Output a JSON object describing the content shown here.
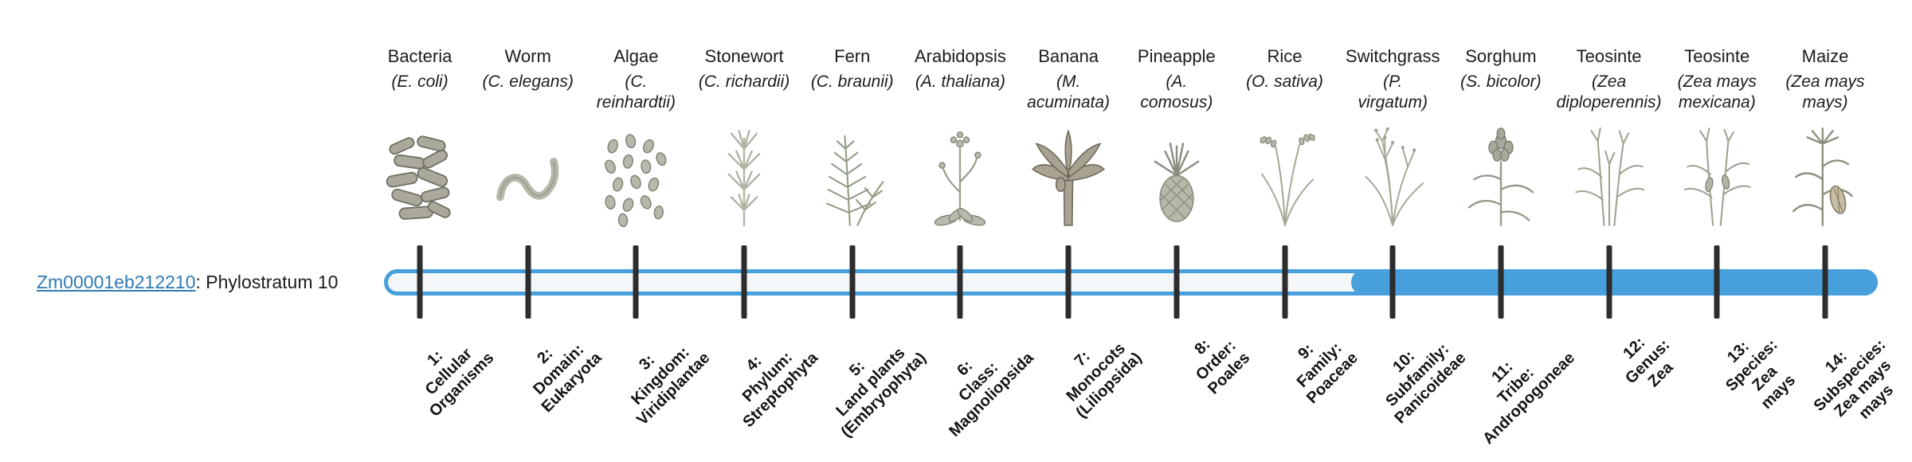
{
  "gene": {
    "id": "Zm00001eb212210",
    "label_suffix": ": Phylostratum 10",
    "phylostratum": 10
  },
  "colors": {
    "bar_fill": "#47a0dc",
    "bar_track": "#f3f7fa",
    "tick": "#2d2d2d",
    "link": "#2f7bb6"
  },
  "organisms": [
    {
      "name": "Bacteria",
      "sci": "(E. coli)",
      "icon": "bacteria-icon",
      "stratum": "1:\nCellular\nOrganisms"
    },
    {
      "name": "Worm",
      "sci": "(C. elegans)",
      "icon": "worm-icon",
      "stratum": "2:\nDomain:\nEukaryota"
    },
    {
      "name": "Algae",
      "sci": "(C.\nreinhardtii)",
      "icon": "algae-icon",
      "stratum": "3:\nKingdom:\nViridiplantae"
    },
    {
      "name": "Stonewort",
      "sci": "(C. richardii)",
      "icon": "stonewort-icon",
      "stratum": "4:\nPhylum:\nStreptophyta"
    },
    {
      "name": "Fern",
      "sci": "(C. braunii)",
      "icon": "fern-icon",
      "stratum": "5:\nLand plants\n(Embryophyta)"
    },
    {
      "name": "Arabidopsis",
      "sci": "(A. thaliana)",
      "icon": "arabidopsis-icon",
      "stratum": "6:\nClass:\nMagnoliopsida"
    },
    {
      "name": "Banana",
      "sci": "(M.\nacuminata)",
      "icon": "banana-icon",
      "stratum": "7:\nMonocots\n(Liliopsida)"
    },
    {
      "name": "Pineapple",
      "sci": "(A.\ncomosus)",
      "icon": "pineapple-icon",
      "stratum": "8:\nOrder:\nPoales"
    },
    {
      "name": "Rice",
      "sci": "(O. sativa)",
      "icon": "rice-icon",
      "stratum": "9:\nFamily:\nPoaceae"
    },
    {
      "name": "Switchgrass",
      "sci": "(P.\nvirgatum)",
      "icon": "switchgrass-icon",
      "stratum": "10:\nSubfamily:\nPanicoideae"
    },
    {
      "name": "Sorghum",
      "sci": "(S. bicolor)",
      "icon": "sorghum-icon",
      "stratum": "11:\nTribe:\nAndropogoneae"
    },
    {
      "name": "Teosinte",
      "sci": "(Zea\ndiploperennis)",
      "icon": "teosinte-icon",
      "stratum": "12:\nGenus:\nZea"
    },
    {
      "name": "Teosinte",
      "sci": "(Zea mays\nmexicana)",
      "icon": "teosinte2-icon",
      "stratum": "13:\nSpecies:\nZea\nmays"
    },
    {
      "name": "Maize",
      "sci": "(Zea mays\nmays)",
      "icon": "maize-icon",
      "stratum": "14:\nSubspecies:\nZea mays\nmays"
    }
  ]
}
